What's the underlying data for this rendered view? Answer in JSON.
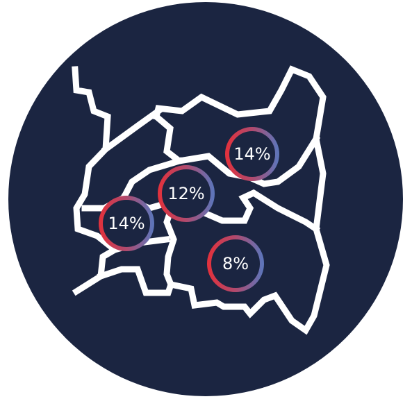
{
  "regions": [
    {
      "label": "14%"
    },
    {
      "label": "12%"
    },
    {
      "label": "14%"
    },
    {
      "label": "8%"
    }
  ]
}
